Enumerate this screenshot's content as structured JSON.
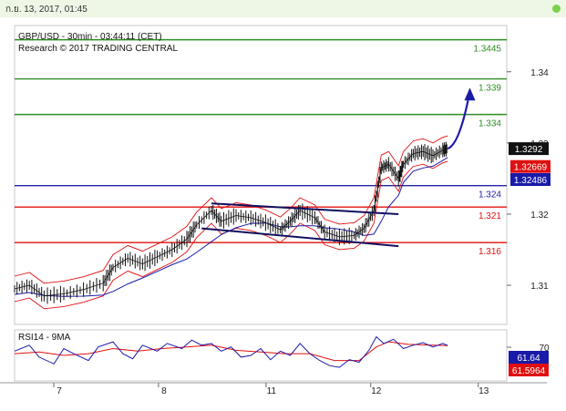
{
  "header": {
    "datetime": "ก.ย. 13, 2017, 01:45"
  },
  "chart_data": [
    {
      "type": "line",
      "title": "GBP/USD - 30min - 03:44:11 (CET)",
      "subtitle": "Research © 2017 TRADING CENTRAL",
      "y_ticks": [
        "1.34",
        "1.33",
        "1.32",
        "1.31"
      ],
      "ylim": [
        1.3045,
        1.3465
      ],
      "x_ticks": [
        "7",
        "8",
        "11",
        "12",
        "13"
      ],
      "levels": [
        {
          "label": "1.3445",
          "value": 1.3445,
          "color": "#2e8b22"
        },
        {
          "label": "1.339",
          "value": 1.339,
          "color": "#2e8b22"
        },
        {
          "label": "1.334",
          "value": 1.334,
          "color": "#2e8b22"
        },
        {
          "label": "1.324",
          "value": 1.324,
          "color": "#2222aa"
        },
        {
          "label": "1.321",
          "value": 1.321,
          "color": "#e01010"
        },
        {
          "label": "1.316",
          "value": 1.316,
          "color": "#e01010"
        }
      ],
      "price_tags": [
        {
          "label": "1.3292",
          "value": 1.3292,
          "bg": "#111111",
          "fg": "#ffffff"
        },
        {
          "label": "1.32669",
          "value": 1.32669,
          "bg": "#e01010",
          "fg": "#ffffff"
        },
        {
          "label": "1.32486",
          "value": 1.32486,
          "bg": "#1a1aa8",
          "fg": "#ffffff"
        }
      ],
      "price_path": [
        [
          0,
          1.3095
        ],
        [
          0.03,
          1.31
        ],
        [
          0.06,
          1.3085
        ],
        [
          0.1,
          1.3088
        ],
        [
          0.14,
          1.3094
        ],
        [
          0.18,
          1.3103
        ],
        [
          0.2,
          1.3125
        ],
        [
          0.23,
          1.3138
        ],
        [
          0.26,
          1.313
        ],
        [
          0.29,
          1.314
        ],
        [
          0.32,
          1.315
        ],
        [
          0.35,
          1.3165
        ],
        [
          0.37,
          1.3185
        ],
        [
          0.4,
          1.3205
        ],
        [
          0.42,
          1.319
        ],
        [
          0.45,
          1.3198
        ],
        [
          0.48,
          1.3195
        ],
        [
          0.51,
          1.3188
        ],
        [
          0.54,
          1.3178
        ],
        [
          0.56,
          1.319
        ],
        [
          0.58,
          1.3205
        ],
        [
          0.61,
          1.3195
        ],
        [
          0.63,
          1.3175
        ],
        [
          0.66,
          1.3168
        ],
        [
          0.69,
          1.317
        ],
        [
          0.71,
          1.318
        ],
        [
          0.73,
          1.3205
        ],
        [
          0.745,
          1.3265
        ],
        [
          0.76,
          1.327
        ],
        [
          0.78,
          1.325
        ],
        [
          0.79,
          1.327
        ],
        [
          0.81,
          1.3285
        ],
        [
          0.83,
          1.3288
        ],
        [
          0.85,
          1.3282
        ],
        [
          0.87,
          1.329
        ],
        [
          0.88,
          1.3292
        ]
      ],
      "forecast_arrow": [
        [
          0.88,
          1.3292
        ],
        [
          0.925,
          1.337
        ]
      ],
      "channel": {
        "upper": [
          [
            0.4,
            1.3215
          ],
          [
            0.78,
            1.32
          ]
        ],
        "lower": [
          [
            0.38,
            1.318
          ],
          [
            0.78,
            1.3155
          ]
        ]
      }
    },
    {
      "type": "line",
      "title": "RSI14 - 9MA",
      "y_ticks": [
        "70"
      ],
      "ylim": [
        20,
        80
      ],
      "value_tags": [
        {
          "label": "61.64",
          "value": 61.64,
          "bg": "#1a1aa8",
          "fg": "#ffffff"
        },
        {
          "label": "61.5964",
          "value": 61.5964,
          "bg": "#e01010",
          "fg": "#ffffff"
        }
      ],
      "rsi_path": [
        [
          0,
          55
        ],
        [
          0.03,
          62
        ],
        [
          0.05,
          48
        ],
        [
          0.08,
          40
        ],
        [
          0.1,
          58
        ],
        [
          0.12,
          52
        ],
        [
          0.15,
          44
        ],
        [
          0.17,
          60
        ],
        [
          0.2,
          66
        ],
        [
          0.22,
          52
        ],
        [
          0.24,
          46
        ],
        [
          0.26,
          62
        ],
        [
          0.29,
          55
        ],
        [
          0.31,
          64
        ],
        [
          0.34,
          58
        ],
        [
          0.36,
          68
        ],
        [
          0.38,
          62
        ],
        [
          0.4,
          64
        ],
        [
          0.42,
          55
        ],
        [
          0.44,
          60
        ],
        [
          0.46,
          48
        ],
        [
          0.48,
          50
        ],
        [
          0.5,
          58
        ],
        [
          0.52,
          45
        ],
        [
          0.54,
          55
        ],
        [
          0.56,
          50
        ],
        [
          0.58,
          64
        ],
        [
          0.6,
          52
        ],
        [
          0.62,
          44
        ],
        [
          0.64,
          38
        ],
        [
          0.66,
          36
        ],
        [
          0.68,
          45
        ],
        [
          0.7,
          42
        ],
        [
          0.72,
          56
        ],
        [
          0.735,
          72
        ],
        [
          0.75,
          64
        ],
        [
          0.77,
          69
        ],
        [
          0.79,
          58
        ],
        [
          0.81,
          62
        ],
        [
          0.83,
          65
        ],
        [
          0.85,
          60
        ],
        [
          0.87,
          64
        ],
        [
          0.88,
          61.64
        ]
      ],
      "ma_path": [
        [
          0,
          52
        ],
        [
          0.05,
          54
        ],
        [
          0.1,
          50
        ],
        [
          0.15,
          52
        ],
        [
          0.2,
          58
        ],
        [
          0.25,
          55
        ],
        [
          0.3,
          58
        ],
        [
          0.35,
          60
        ],
        [
          0.4,
          62
        ],
        [
          0.45,
          56
        ],
        [
          0.5,
          54
        ],
        [
          0.55,
          52
        ],
        [
          0.6,
          52
        ],
        [
          0.65,
          44
        ],
        [
          0.7,
          44
        ],
        [
          0.735,
          60
        ],
        [
          0.76,
          66
        ],
        [
          0.8,
          63
        ],
        [
          0.85,
          62
        ],
        [
          0.88,
          61.5964
        ]
      ]
    }
  ]
}
